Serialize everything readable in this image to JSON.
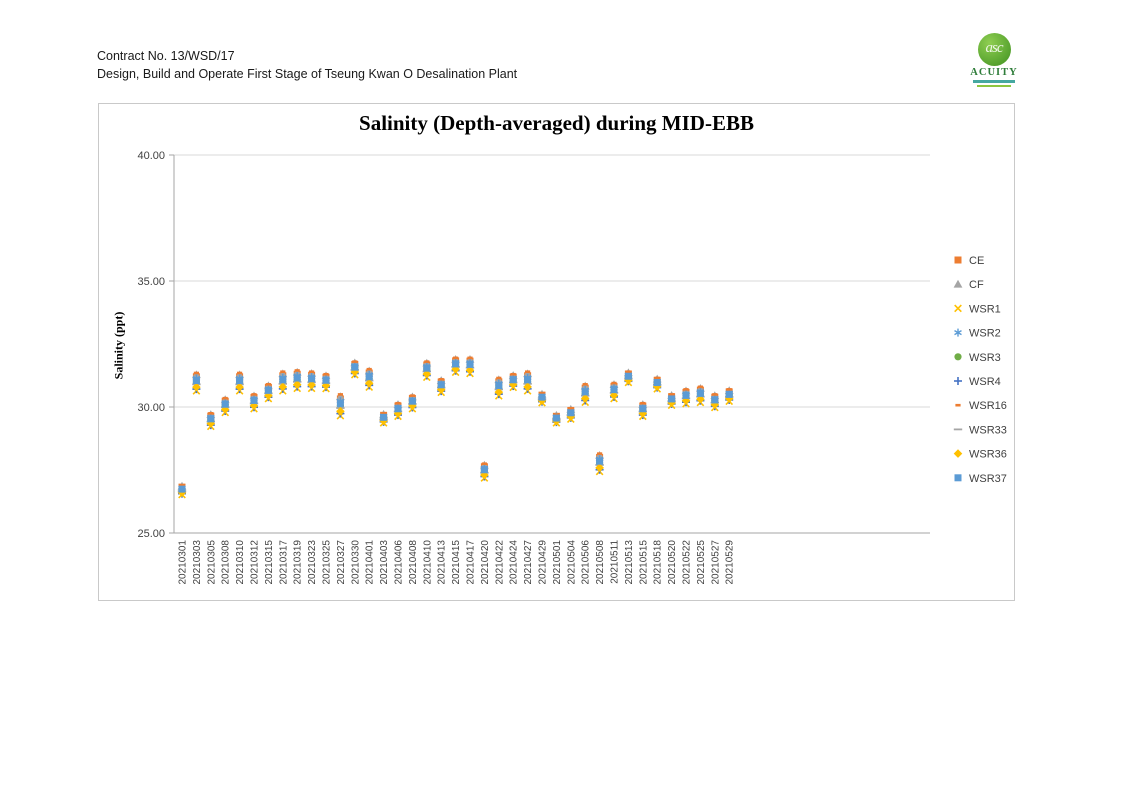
{
  "page": {
    "header": {
      "line1": "Contract No. 13/WSD/17",
      "line2": "Design, Build and Operate First Stage of Tseung Kwan O Desalination Plant"
    },
    "logo": {
      "monogram": "asc",
      "wordmark": "ACUITY"
    }
  },
  "chart_data": {
    "type": "scatter",
    "title": "Salinity (Depth-averaged) during MID-EBB",
    "xlabel": "",
    "ylabel": "Salinity (ppt)",
    "ylim": [
      25,
      40
    ],
    "yticks": [
      25,
      30,
      35,
      40
    ],
    "ytick_labels": [
      "25.00",
      "30.00",
      "35.00",
      "40.00"
    ],
    "grid": "horizontal-gray",
    "legend_position": "right",
    "categories": [
      "20210301",
      "20210303",
      "20210305",
      "20210308",
      "20210310",
      "20210312",
      "20210315",
      "20210317",
      "20210319",
      "20210323",
      "20210325",
      "20210327",
      "20210330",
      "20210401",
      "20210403",
      "20210406",
      "20210408",
      "20210410",
      "20210413",
      "20210415",
      "20210417",
      "20210420",
      "20210422",
      "20210424",
      "20210427",
      "20210429",
      "20210501",
      "20210504",
      "20210506",
      "20210508",
      "20210511",
      "20210513",
      "20210515",
      "20210518",
      "20210520",
      "20210522",
      "20210525",
      "20210527",
      "20210529"
    ],
    "series": [
      {
        "name": "CE",
        "marker": "square",
        "color": "#ED7D31",
        "values": [
          26.82,
          31.2,
          29.64,
          30.23,
          31.2,
          30.38,
          30.78,
          31.24,
          31.3,
          31.26,
          31.18,
          30.32,
          31.69,
          31.35,
          29.67,
          30.04,
          30.34,
          31.67,
          30.99,
          31.83,
          31.82,
          27.63,
          31.0,
          31.19,
          31.24,
          30.47,
          29.63,
          29.86,
          30.75,
          28.0,
          30.82,
          31.31,
          30.04,
          31.06,
          30.41,
          30.58,
          30.67,
          30.39,
          30.6
        ]
      },
      {
        "name": "CF",
        "marker": "triangle",
        "color": "#A5A5A5",
        "values": [
          26.86,
          31.28,
          29.7,
          30.29,
          31.28,
          30.44,
          30.84,
          31.32,
          31.38,
          31.33,
          31.24,
          30.41,
          31.75,
          31.43,
          29.71,
          30.1,
          30.4,
          31.74,
          31.05,
          31.89,
          31.89,
          27.69,
          31.08,
          31.25,
          31.32,
          30.51,
          29.67,
          29.91,
          30.83,
          28.08,
          30.89,
          31.36,
          30.1,
          31.11,
          30.46,
          30.64,
          30.74,
          30.45,
          30.65
        ]
      },
      {
        "name": "WSR1",
        "marker": "x",
        "color": "#FFC000",
        "values": [
          26.52,
          30.64,
          29.23,
          29.78,
          30.64,
          29.93,
          30.33,
          30.64,
          30.74,
          30.74,
          30.73,
          29.65,
          31.28,
          30.79,
          29.37,
          29.63,
          29.93,
          31.18,
          30.58,
          31.38,
          31.33,
          27.18,
          30.44,
          30.78,
          30.64,
          30.17,
          29.37,
          29.52,
          30.19,
          27.44,
          30.33,
          30.97,
          29.63,
          30.72,
          30.07,
          30.13,
          30.18,
          29.98,
          30.23
        ]
      },
      {
        "name": "WSR2",
        "marker": "asterisk",
        "color": "#5B9BD5",
        "values": [
          26.78,
          31.13,
          29.59,
          30.17,
          31.13,
          30.32,
          30.72,
          31.16,
          31.23,
          31.19,
          31.12,
          30.23,
          31.64,
          31.28,
          29.63,
          29.99,
          30.29,
          31.61,
          30.94,
          31.77,
          31.76,
          27.57,
          30.93,
          31.14,
          31.16,
          30.43,
          29.6,
          29.82,
          30.68,
          27.93,
          30.76,
          31.27,
          29.99,
          31.02,
          30.37,
          30.52,
          30.61,
          30.34,
          30.55
        ]
      },
      {
        "name": "WSR3",
        "marker": "circle",
        "color": "#70AD47",
        "values": [
          26.7,
          30.98,
          29.48,
          30.05,
          30.98,
          30.2,
          30.6,
          31.0,
          31.08,
          31.05,
          31.0,
          30.05,
          31.53,
          31.13,
          29.55,
          29.88,
          30.18,
          31.48,
          30.83,
          31.65,
          31.63,
          27.45,
          30.78,
          31.03,
          31.0,
          30.35,
          29.53,
          29.73,
          30.53,
          27.78,
          30.63,
          31.18,
          29.88,
          30.93,
          30.28,
          30.4,
          30.48,
          30.23,
          30.45
        ]
      },
      {
        "name": "WSR4",
        "marker": "plus",
        "color": "#4472C4",
        "values": [
          26.56,
          30.71,
          29.28,
          29.84,
          30.71,
          29.99,
          30.39,
          30.72,
          30.81,
          30.81,
          30.79,
          29.74,
          31.33,
          30.86,
          29.41,
          29.68,
          29.98,
          31.25,
          30.63,
          31.44,
          31.4,
          27.24,
          30.51,
          30.83,
          30.72,
          30.21,
          29.4,
          29.57,
          30.26,
          27.51,
          30.4,
          31.02,
          29.68,
          30.77,
          30.12,
          30.19,
          30.25,
          30.03,
          30.28
        ]
      },
      {
        "name": "WSR16",
        "marker": "dash-short",
        "color": "#ED7D31",
        "values": [
          26.9,
          31.35,
          29.75,
          30.35,
          31.35,
          30.5,
          30.9,
          31.4,
          31.45,
          31.4,
          31.3,
          30.5,
          31.8,
          31.5,
          29.75,
          30.15,
          30.45,
          31.8,
          31.1,
          31.95,
          31.95,
          27.75,
          31.15,
          31.3,
          31.4,
          30.55,
          29.7,
          29.95,
          30.9,
          28.15,
          30.95,
          31.4,
          30.15,
          31.15,
          30.5,
          30.7,
          30.8,
          30.5,
          30.7
        ]
      },
      {
        "name": "WSR33",
        "marker": "dash-long",
        "color": "#A5A5A5",
        "values": [
          26.66,
          30.9,
          29.42,
          29.99,
          30.9,
          30.14,
          30.54,
          30.92,
          31.0,
          30.98,
          30.94,
          29.96,
          31.47,
          31.05,
          29.51,
          29.82,
          30.12,
          31.41,
          30.77,
          31.59,
          31.56,
          27.39,
          30.7,
          30.97,
          30.92,
          30.31,
          29.49,
          29.68,
          30.45,
          27.7,
          30.56,
          31.13,
          29.82,
          30.88,
          30.23,
          30.34,
          30.41,
          30.17,
          30.4
        ]
      },
      {
        "name": "WSR36",
        "marker": "diamond",
        "color": "#FFC000",
        "values": [
          26.6,
          30.79,
          29.34,
          29.9,
          30.79,
          30.05,
          30.45,
          30.8,
          30.89,
          30.88,
          30.85,
          29.83,
          31.39,
          30.94,
          29.45,
          29.74,
          30.04,
          31.31,
          30.69,
          31.5,
          31.46,
          27.3,
          30.59,
          30.89,
          30.8,
          30.25,
          29.44,
          29.61,
          30.34,
          27.59,
          30.46,
          31.06,
          29.74,
          30.81,
          30.16,
          30.25,
          30.31,
          30.09,
          30.33
        ]
      },
      {
        "name": "WSR37",
        "marker": "square",
        "color": "#5B9BD5",
        "values": [
          26.74,
          31.05,
          29.53,
          30.11,
          31.05,
          30.26,
          30.66,
          31.08,
          31.15,
          31.12,
          31.06,
          30.14,
          31.58,
          31.2,
          29.59,
          29.93,
          30.23,
          31.54,
          30.88,
          31.71,
          31.69,
          27.51,
          30.85,
          31.08,
          31.08,
          30.39,
          29.56,
          29.77,
          30.6,
          27.85,
          30.69,
          31.22,
          29.93,
          30.97,
          30.32,
          30.46,
          30.54,
          30.28,
          30.5
        ]
      }
    ]
  }
}
